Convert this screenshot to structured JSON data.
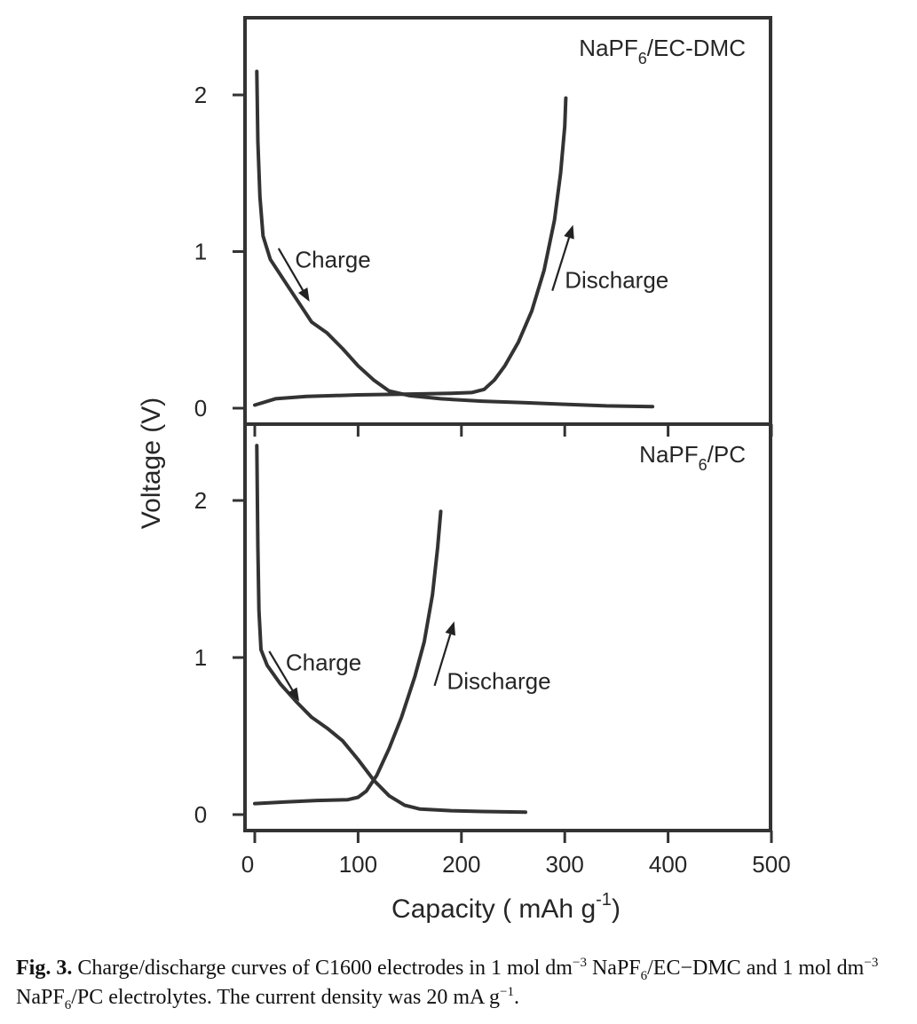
{
  "chart_data": {
    "type": "line",
    "xlabel": "Capacity ( mAh g",
    "xlabel_sup": "-1",
    "xlabel_end": ")",
    "ylabel": "Voltage (V)",
    "x_ticks": [
      "0",
      "100",
      "200",
      "300",
      "400",
      "500"
    ],
    "xlim": [
      0,
      500
    ],
    "panels": [
      {
        "label_pre": "NaPF",
        "label_sub": "6",
        "label_post": "/EC-DMC",
        "ylim": [
          -0.1,
          2.5
        ],
        "y_ticks": [
          "2",
          "1",
          "0"
        ],
        "series": [
          {
            "id": "charge",
            "points": [
              [
                2,
                2.15
              ],
              [
                3,
                1.7
              ],
              [
                5,
                1.35
              ],
              [
                8,
                1.1
              ],
              [
                15,
                0.95
              ],
              [
                30,
                0.8
              ],
              [
                45,
                0.65
              ],
              [
                55,
                0.55
              ],
              [
                70,
                0.48
              ],
              [
                85,
                0.38
              ],
              [
                100,
                0.27
              ],
              [
                115,
                0.18
              ],
              [
                130,
                0.11
              ],
              [
                150,
                0.08
              ],
              [
                180,
                0.06
              ],
              [
                220,
                0.045
              ],
              [
                260,
                0.035
              ],
              [
                300,
                0.025
              ],
              [
                340,
                0.015
              ],
              [
                385,
                0.01
              ]
            ]
          },
          {
            "id": "discharge",
            "points": [
              [
                0,
                0.02
              ],
              [
                20,
                0.06
              ],
              [
                50,
                0.075
              ],
              [
                100,
                0.085
              ],
              [
                150,
                0.09
              ],
              [
                190,
                0.095
              ],
              [
                210,
                0.1
              ],
              [
                222,
                0.12
              ],
              [
                232,
                0.18
              ],
              [
                242,
                0.27
              ],
              [
                255,
                0.42
              ],
              [
                268,
                0.62
              ],
              [
                280,
                0.88
              ],
              [
                290,
                1.2
              ],
              [
                296,
                1.5
              ],
              [
                300,
                1.8
              ],
              [
                301,
                1.98
              ]
            ]
          }
        ],
        "annotations": [
          {
            "text": "Charge",
            "x": 39,
            "y": 0.95,
            "arrow_from": [
              23,
              1.02
            ],
            "arrow_to": [
              53,
              0.68
            ]
          },
          {
            "text": "Discharge",
            "x": 300,
            "y": 0.82,
            "arrow_from": [
              288,
              0.75
            ],
            "arrow_to": [
              308,
              1.17
            ]
          }
        ]
      },
      {
        "label_pre": "NaPF",
        "label_sub": "6",
        "label_post": "/PC",
        "ylim": [
          -0.1,
          2.4
        ],
        "y_ticks": [
          "2",
          "1",
          "0"
        ],
        "series": [
          {
            "id": "charge",
            "points": [
              [
                2,
                2.35
              ],
              [
                3,
                1.7
              ],
              [
                4,
                1.3
              ],
              [
                6,
                1.05
              ],
              [
                12,
                0.95
              ],
              [
                25,
                0.83
              ],
              [
                40,
                0.72
              ],
              [
                55,
                0.62
              ],
              [
                70,
                0.55
              ],
              [
                85,
                0.47
              ],
              [
                100,
                0.35
              ],
              [
                115,
                0.22
              ],
              [
                130,
                0.12
              ],
              [
                145,
                0.06
              ],
              [
                160,
                0.035
              ],
              [
                190,
                0.025
              ],
              [
                220,
                0.02
              ],
              [
                262,
                0.015
              ]
            ]
          },
          {
            "id": "discharge",
            "points": [
              [
                0,
                0.07
              ],
              [
                30,
                0.08
              ],
              [
                60,
                0.09
              ],
              [
                90,
                0.095
              ],
              [
                100,
                0.11
              ],
              [
                108,
                0.15
              ],
              [
                118,
                0.25
              ],
              [
                130,
                0.42
              ],
              [
                142,
                0.62
              ],
              [
                155,
                0.88
              ],
              [
                164,
                1.1
              ],
              [
                172,
                1.4
              ],
              [
                177,
                1.7
              ],
              [
                180,
                1.93
              ]
            ]
          }
        ],
        "annotations": [
          {
            "text": "Charge",
            "x": 30,
            "y": 0.97,
            "arrow_from": [
              14,
              1.04
            ],
            "arrow_to": [
              43,
              0.72
            ]
          },
          {
            "text": "Discharge",
            "x": 186,
            "y": 0.85,
            "arrow_from": [
              174,
              0.82
            ],
            "arrow_to": [
              193,
              1.23
            ]
          }
        ]
      }
    ]
  },
  "caption": {
    "fig_label": "Fig. 3.",
    "t1": " Charge/discharge curves of C1600 electrodes in 1 mol dm",
    "s1": "−3",
    "t2": " NaPF",
    "b1": "6",
    "t3": "/EC−DMC and 1 mol dm",
    "s2": "−3",
    "t4": " NaPF",
    "b2": "6",
    "t5": "/PC electrolytes. The current density was 20 mA g",
    "s3": "−1",
    "t6": "."
  }
}
